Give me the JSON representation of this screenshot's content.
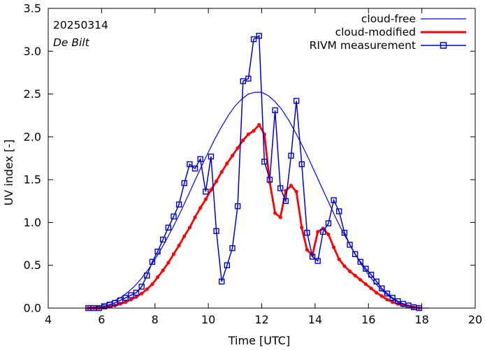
{
  "chart_data": {
    "type": "line",
    "xlabel": "Time  [UTC]",
    "ylabel": "UV index  [-]",
    "xlim": [
      4,
      20
    ],
    "ylim": [
      0,
      3.5
    ],
    "xticks": [
      4,
      6,
      8,
      10,
      12,
      14,
      16,
      18,
      20
    ],
    "yticks": [
      0.0,
      0.5,
      1.0,
      1.5,
      2.0,
      2.5,
      3.0,
      3.5
    ],
    "xtick_labels": [
      "4",
      "6",
      "8",
      "10",
      "12",
      "14",
      "16",
      "18",
      "20"
    ],
    "ytick_labels": [
      "0.0",
      "0.5",
      "1.0",
      "1.5",
      "2.0",
      "2.5",
      "3.0",
      "3.5"
    ],
    "grid": false,
    "legend_position": "top-right",
    "annotations": {
      "date": "20250314",
      "station": "De Bilt"
    },
    "series": [
      {
        "name": "cloud-free",
        "color": "#0000ff",
        "style": "thin-line",
        "x": [
          5.5,
          5.75,
          6,
          6.25,
          6.5,
          6.75,
          7,
          7.25,
          7.5,
          7.75,
          8,
          8.25,
          8.5,
          8.75,
          9,
          9.25,
          9.5,
          9.75,
          10,
          10.25,
          10.5,
          10.75,
          11,
          11.25,
          11.5,
          11.75,
          12,
          12.25,
          12.5,
          12.75,
          13,
          13.25,
          13.5,
          13.75,
          14,
          14.25,
          14.5,
          14.75,
          15,
          15.25,
          15.5,
          15.75,
          16,
          16.25,
          16.5,
          16.75,
          17,
          17.25,
          17.5,
          17.75,
          18,
          18.25
        ],
        "y": [
          0.0,
          0.01,
          0.03,
          0.06,
          0.09,
          0.13,
          0.19,
          0.26,
          0.35,
          0.45,
          0.57,
          0.7,
          0.84,
          0.99,
          1.15,
          1.32,
          1.49,
          1.66,
          1.82,
          1.98,
          2.12,
          2.25,
          2.36,
          2.44,
          2.5,
          2.52,
          2.52,
          2.48,
          2.41,
          2.32,
          2.2,
          2.06,
          1.91,
          1.75,
          1.58,
          1.41,
          1.24,
          1.07,
          0.91,
          0.77,
          0.63,
          0.5,
          0.39,
          0.29,
          0.21,
          0.14,
          0.09,
          0.05,
          0.02,
          0.01,
          0.0,
          0.0
        ]
      },
      {
        "name": "cloud-modified",
        "color": "#ff0000",
        "style": "thick-line-dots",
        "x": [
          5.5,
          5.7,
          5.9,
          6.1,
          6.3,
          6.5,
          6.7,
          6.9,
          7.1,
          7.3,
          7.5,
          7.7,
          7.9,
          8.1,
          8.3,
          8.5,
          8.7,
          8.9,
          9.1,
          9.3,
          9.5,
          9.7,
          9.9,
          10.1,
          10.3,
          10.5,
          10.7,
          10.9,
          11.1,
          11.3,
          11.5,
          11.7,
          11.9,
          12.1,
          12.3,
          12.5,
          12.7,
          12.9,
          13.1,
          13.3,
          13.5,
          13.7,
          13.9,
          14.1,
          14.3,
          14.5,
          14.7,
          14.9,
          15.1,
          15.3,
          15.5,
          15.7,
          15.9,
          16.1,
          16.3,
          16.5,
          16.7,
          16.9,
          17.1,
          17.3,
          17.5,
          17.7,
          17.9
        ],
        "y": [
          0.0,
          0.0,
          0.0,
          0.01,
          0.02,
          0.03,
          0.05,
          0.07,
          0.1,
          0.13,
          0.17,
          0.22,
          0.28,
          0.36,
          0.44,
          0.53,
          0.63,
          0.73,
          0.84,
          0.94,
          1.06,
          1.17,
          1.27,
          1.38,
          1.48,
          1.59,
          1.69,
          1.78,
          1.87,
          1.96,
          2.03,
          2.07,
          2.14,
          2.03,
          1.47,
          1.11,
          1.06,
          1.37,
          1.43,
          1.36,
          0.94,
          0.68,
          0.62,
          0.89,
          0.93,
          0.86,
          0.71,
          0.57,
          0.49,
          0.43,
          0.38,
          0.33,
          0.28,
          0.23,
          0.18,
          0.14,
          0.1,
          0.07,
          0.05,
          0.03,
          0.02,
          0.01,
          0.0
        ]
      },
      {
        "name": "RIVM measurement",
        "color": "#0000cd",
        "style": "line-square-markers",
        "x": [
          5.5,
          5.7,
          5.9,
          6.1,
          6.3,
          6.5,
          6.7,
          6.9,
          7.1,
          7.3,
          7.5,
          7.7,
          7.9,
          8.1,
          8.3,
          8.5,
          8.7,
          8.9,
          9.1,
          9.3,
          9.5,
          9.7,
          9.9,
          10.1,
          10.3,
          10.5,
          10.7,
          10.9,
          11.1,
          11.3,
          11.5,
          11.7,
          11.9,
          12.1,
          12.3,
          12.5,
          12.7,
          12.9,
          13.1,
          13.3,
          13.5,
          13.7,
          13.9,
          14.1,
          14.3,
          14.5,
          14.7,
          14.9,
          15.1,
          15.3,
          15.5,
          15.7,
          15.9,
          16.1,
          16.3,
          16.5,
          16.7,
          16.9,
          17.1,
          17.3,
          17.5,
          17.7,
          17.9
        ],
        "y": [
          0.0,
          0.0,
          0.0,
          0.02,
          0.04,
          0.06,
          0.09,
          0.12,
          0.15,
          0.18,
          0.25,
          0.38,
          0.54,
          0.66,
          0.8,
          0.94,
          1.07,
          1.21,
          1.46,
          1.68,
          1.63,
          1.74,
          1.36,
          1.77,
          0.9,
          0.31,
          0.5,
          0.7,
          1.19,
          2.65,
          2.68,
          3.14,
          3.18,
          1.71,
          1.5,
          2.31,
          1.4,
          1.25,
          1.78,
          2.42,
          1.68,
          0.88,
          0.6,
          0.55,
          0.89,
          0.99,
          1.26,
          1.13,
          0.88,
          0.74,
          0.63,
          0.54,
          0.46,
          0.39,
          0.31,
          0.23,
          0.17,
          0.12,
          0.08,
          0.05,
          0.03,
          0.01,
          0.0
        ]
      }
    ]
  }
}
